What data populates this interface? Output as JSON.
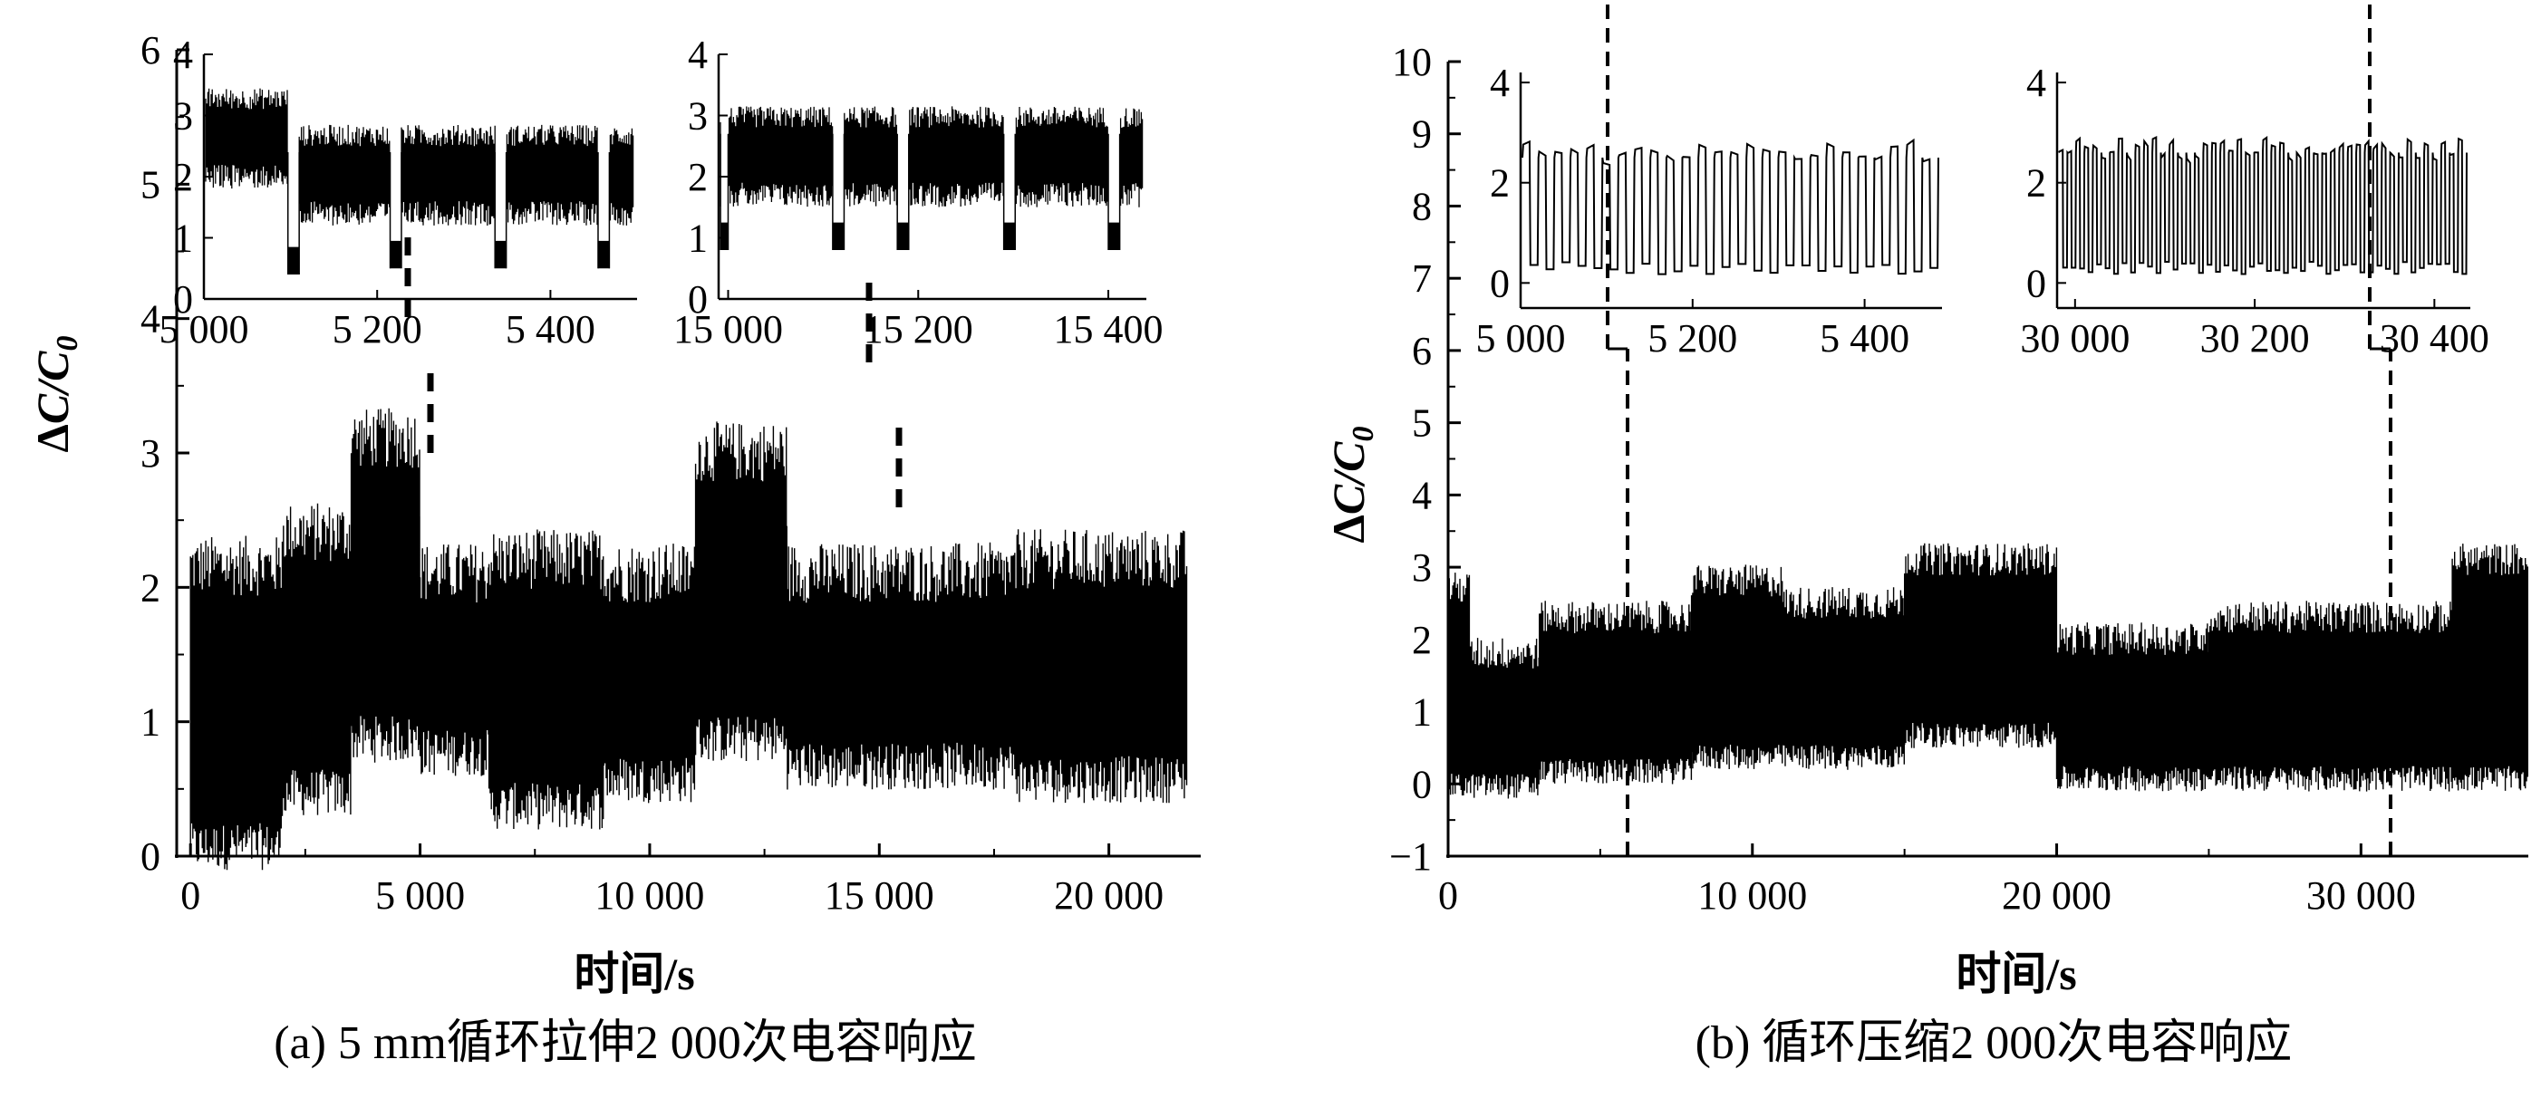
{
  "chart_data": [
    {
      "id": "a",
      "type": "line",
      "caption": "(a) 5 mm循环拉伸2 000次电容响应",
      "xlabel": "时间/s",
      "ylabel": "ΔC/C₀",
      "x_ticks": [
        {
          "value": 0,
          "label": "0"
        },
        {
          "value": 5000,
          "label": "5 000"
        },
        {
          "value": 10000,
          "label": "10 000"
        },
        {
          "value": 15000,
          "label": "15 000"
        },
        {
          "value": 20000,
          "label": "20 000"
        }
      ],
      "y_ticks": [
        {
          "value": 0,
          "label": "0"
        },
        {
          "value": 1,
          "label": "1"
        },
        {
          "value": 2,
          "label": "2"
        },
        {
          "value": 3,
          "label": "3"
        },
        {
          "value": 4,
          "label": "4"
        },
        {
          "value": 5,
          "label": "5"
        },
        {
          "value": 6,
          "label": "6"
        }
      ],
      "xlim": [
        -300,
        22000
      ],
      "ylim": [
        0,
        6
      ],
      "grid": false,
      "series": [
        {
          "segments": [
            {
              "x": [
                0,
                2000
              ],
              "low": 0,
              "high": 2.25
            },
            {
              "x": [
                2000,
                3500
              ],
              "low": 0.4,
              "high": 2.5
            },
            {
              "x": [
                3500,
                5000
              ],
              "low": 0.8,
              "high": 3.2
            },
            {
              "x": [
                5000,
                6500
              ],
              "low": 0.7,
              "high": 2.2
            },
            {
              "x": [
                6500,
                9000
              ],
              "low": 0.3,
              "high": 2.3
            },
            {
              "x": [
                9000,
                11000
              ],
              "low": 0.5,
              "high": 2.2
            },
            {
              "x": [
                11000,
                13000
              ],
              "low": 0.8,
              "high": 3.1
            },
            {
              "x": [
                13000,
                18000
              ],
              "low": 0.6,
              "high": 2.2
            },
            {
              "x": [
                18000,
                21700
              ],
              "low": 0.5,
              "high": 2.3
            }
          ]
        }
      ],
      "highlight_ranges": [
        [
          5000,
          5400
        ],
        [
          15000,
          15400
        ]
      ],
      "insets": [
        {
          "x_ticks": [
            {
              "value": 5000,
              "label": "5 000"
            },
            {
              "value": 5200,
              "label": "5 200"
            },
            {
              "value": 5400,
              "label": "5 400"
            }
          ],
          "y_ticks": [
            {
              "value": 0,
              "label": "0"
            },
            {
              "value": 1,
              "label": "1"
            },
            {
              "value": 2,
              "label": "2"
            },
            {
              "value": 3,
              "label": "3"
            },
            {
              "value": 4,
              "label": "4"
            }
          ],
          "xlim": [
            5000,
            5500
          ],
          "ylim": [
            0,
            4
          ],
          "high": 2.0,
          "low": 0.9,
          "dips": [
            {
              "x": [
                5097,
                5110
              ],
              "y": 0.4
            },
            {
              "x": [
                5215,
                5228
              ],
              "y": 0.5
            },
            {
              "x": [
                5336,
                5349
              ],
              "y": 0.5
            },
            {
              "x": [
                5455,
                5468
              ],
              "y": 0.5
            }
          ]
        },
        {
          "x_ticks": [
            {
              "value": 15000,
              "label": "15 000"
            },
            {
              "value": 15200,
              "label": "15 200"
            },
            {
              "value": 15400,
              "label": "15 400"
            }
          ],
          "y_ticks": [
            {
              "value": 0,
              "label": "0"
            },
            {
              "value": 1,
              "label": "1"
            },
            {
              "value": 2,
              "label": "2"
            },
            {
              "value": 3,
              "label": "3"
            },
            {
              "value": 4,
              "label": "4"
            }
          ],
          "xlim": [
            14990,
            15440
          ],
          "ylim": [
            0,
            4
          ],
          "high": 2.3,
          "low": 1.6,
          "dips": [
            {
              "x": [
                14992,
                15000
              ],
              "y": 0.8
            },
            {
              "x": [
                15110,
                15122
              ],
              "y": 0.8
            },
            {
              "x": [
                15178,
                15190
              ],
              "y": 0.8
            },
            {
              "x": [
                15290,
                15302
              ],
              "y": 0.8
            },
            {
              "x": [
                15400,
                15412
              ],
              "y": 0.8
            }
          ]
        }
      ]
    },
    {
      "id": "b",
      "type": "line",
      "caption": "(b) 循环压缩2 000次电容响应",
      "xlabel": "时间/s",
      "ylabel": "ΔC/C₀",
      "x_ticks": [
        {
          "value": 0,
          "label": "0"
        },
        {
          "value": 10000,
          "label": "10 000"
        },
        {
          "value": 20000,
          "label": "20 000"
        },
        {
          "value": 30000,
          "label": "30 000"
        }
      ],
      "y_ticks": [
        {
          "value": -1,
          "label": "−1"
        },
        {
          "value": 0,
          "label": "0"
        },
        {
          "value": 1,
          "label": "1"
        },
        {
          "value": 2,
          "label": "2"
        },
        {
          "value": 3,
          "label": "3"
        },
        {
          "value": 4,
          "label": "4"
        },
        {
          "value": 5,
          "label": "5"
        },
        {
          "value": 6,
          "label": "6"
        },
        {
          "value": 7,
          "label": "7"
        },
        {
          "value": 8,
          "label": "8"
        },
        {
          "value": 9,
          "label": "9"
        },
        {
          "value": 10,
          "label": "10"
        }
      ],
      "xlim": [
        0,
        35500
      ],
      "ylim": [
        -1,
        10
      ],
      "grid": false,
      "series": [
        {
          "segments": [
            {
              "x": [
                0,
                700
              ],
              "low": -0.1,
              "high": 2.8
            },
            {
              "x": [
                700,
                3000
              ],
              "low": -0.1,
              "high": 1.9
            },
            {
              "x": [
                3000,
                8000
              ],
              "low": 0.1,
              "high": 2.4
            },
            {
              "x": [
                8000,
                11000
              ],
              "low": 0.3,
              "high": 2.9
            },
            {
              "x": [
                11000,
                15000
              ],
              "low": 0.3,
              "high": 2.6
            },
            {
              "x": [
                15000,
                20000
              ],
              "low": 0.6,
              "high": 3.2
            },
            {
              "x": [
                20000,
                25000
              ],
              "low": 0.0,
              "high": 2.1
            },
            {
              "x": [
                25000,
                33000
              ],
              "low": 0.0,
              "high": 2.4
            },
            {
              "x": [
                33000,
                35500
              ],
              "low": 0.0,
              "high": 3.2
            }
          ]
        }
      ],
      "highlight_ranges": [
        [
          5000,
          5400
        ],
        [
          30000,
          30400
        ]
      ],
      "insets": [
        {
          "x_ticks": [
            {
              "value": 5000,
              "label": "5 000"
            },
            {
              "value": 5200,
              "label": "5 200"
            },
            {
              "value": 5400,
              "label": "5 400"
            }
          ],
          "y_ticks": [
            {
              "value": 0,
              "label": "0"
            },
            {
              "value": 2,
              "label": "2"
            },
            {
              "value": 4,
              "label": "4"
            }
          ],
          "xlim": [
            5000,
            5490
          ],
          "ylim": [
            -0.5,
            4.2
          ],
          "high": 2.5,
          "low": 0.3,
          "cycles": 26
        },
        {
          "x_ticks": [
            {
              "value": 30000,
              "label": "30 000"
            },
            {
              "value": 30200,
              "label": "30 200"
            },
            {
              "value": 30400,
              "label": "30 400"
            }
          ],
          "y_ticks": [
            {
              "value": 0,
              "label": "0"
            },
            {
              "value": 2,
              "label": "2"
            },
            {
              "value": 4,
              "label": "4"
            }
          ],
          "xlim": [
            29980,
            30440
          ],
          "ylim": [
            -0.5,
            4.2
          ],
          "high": 2.6,
          "low": 0.3,
          "cycles": 48
        }
      ]
    }
  ]
}
